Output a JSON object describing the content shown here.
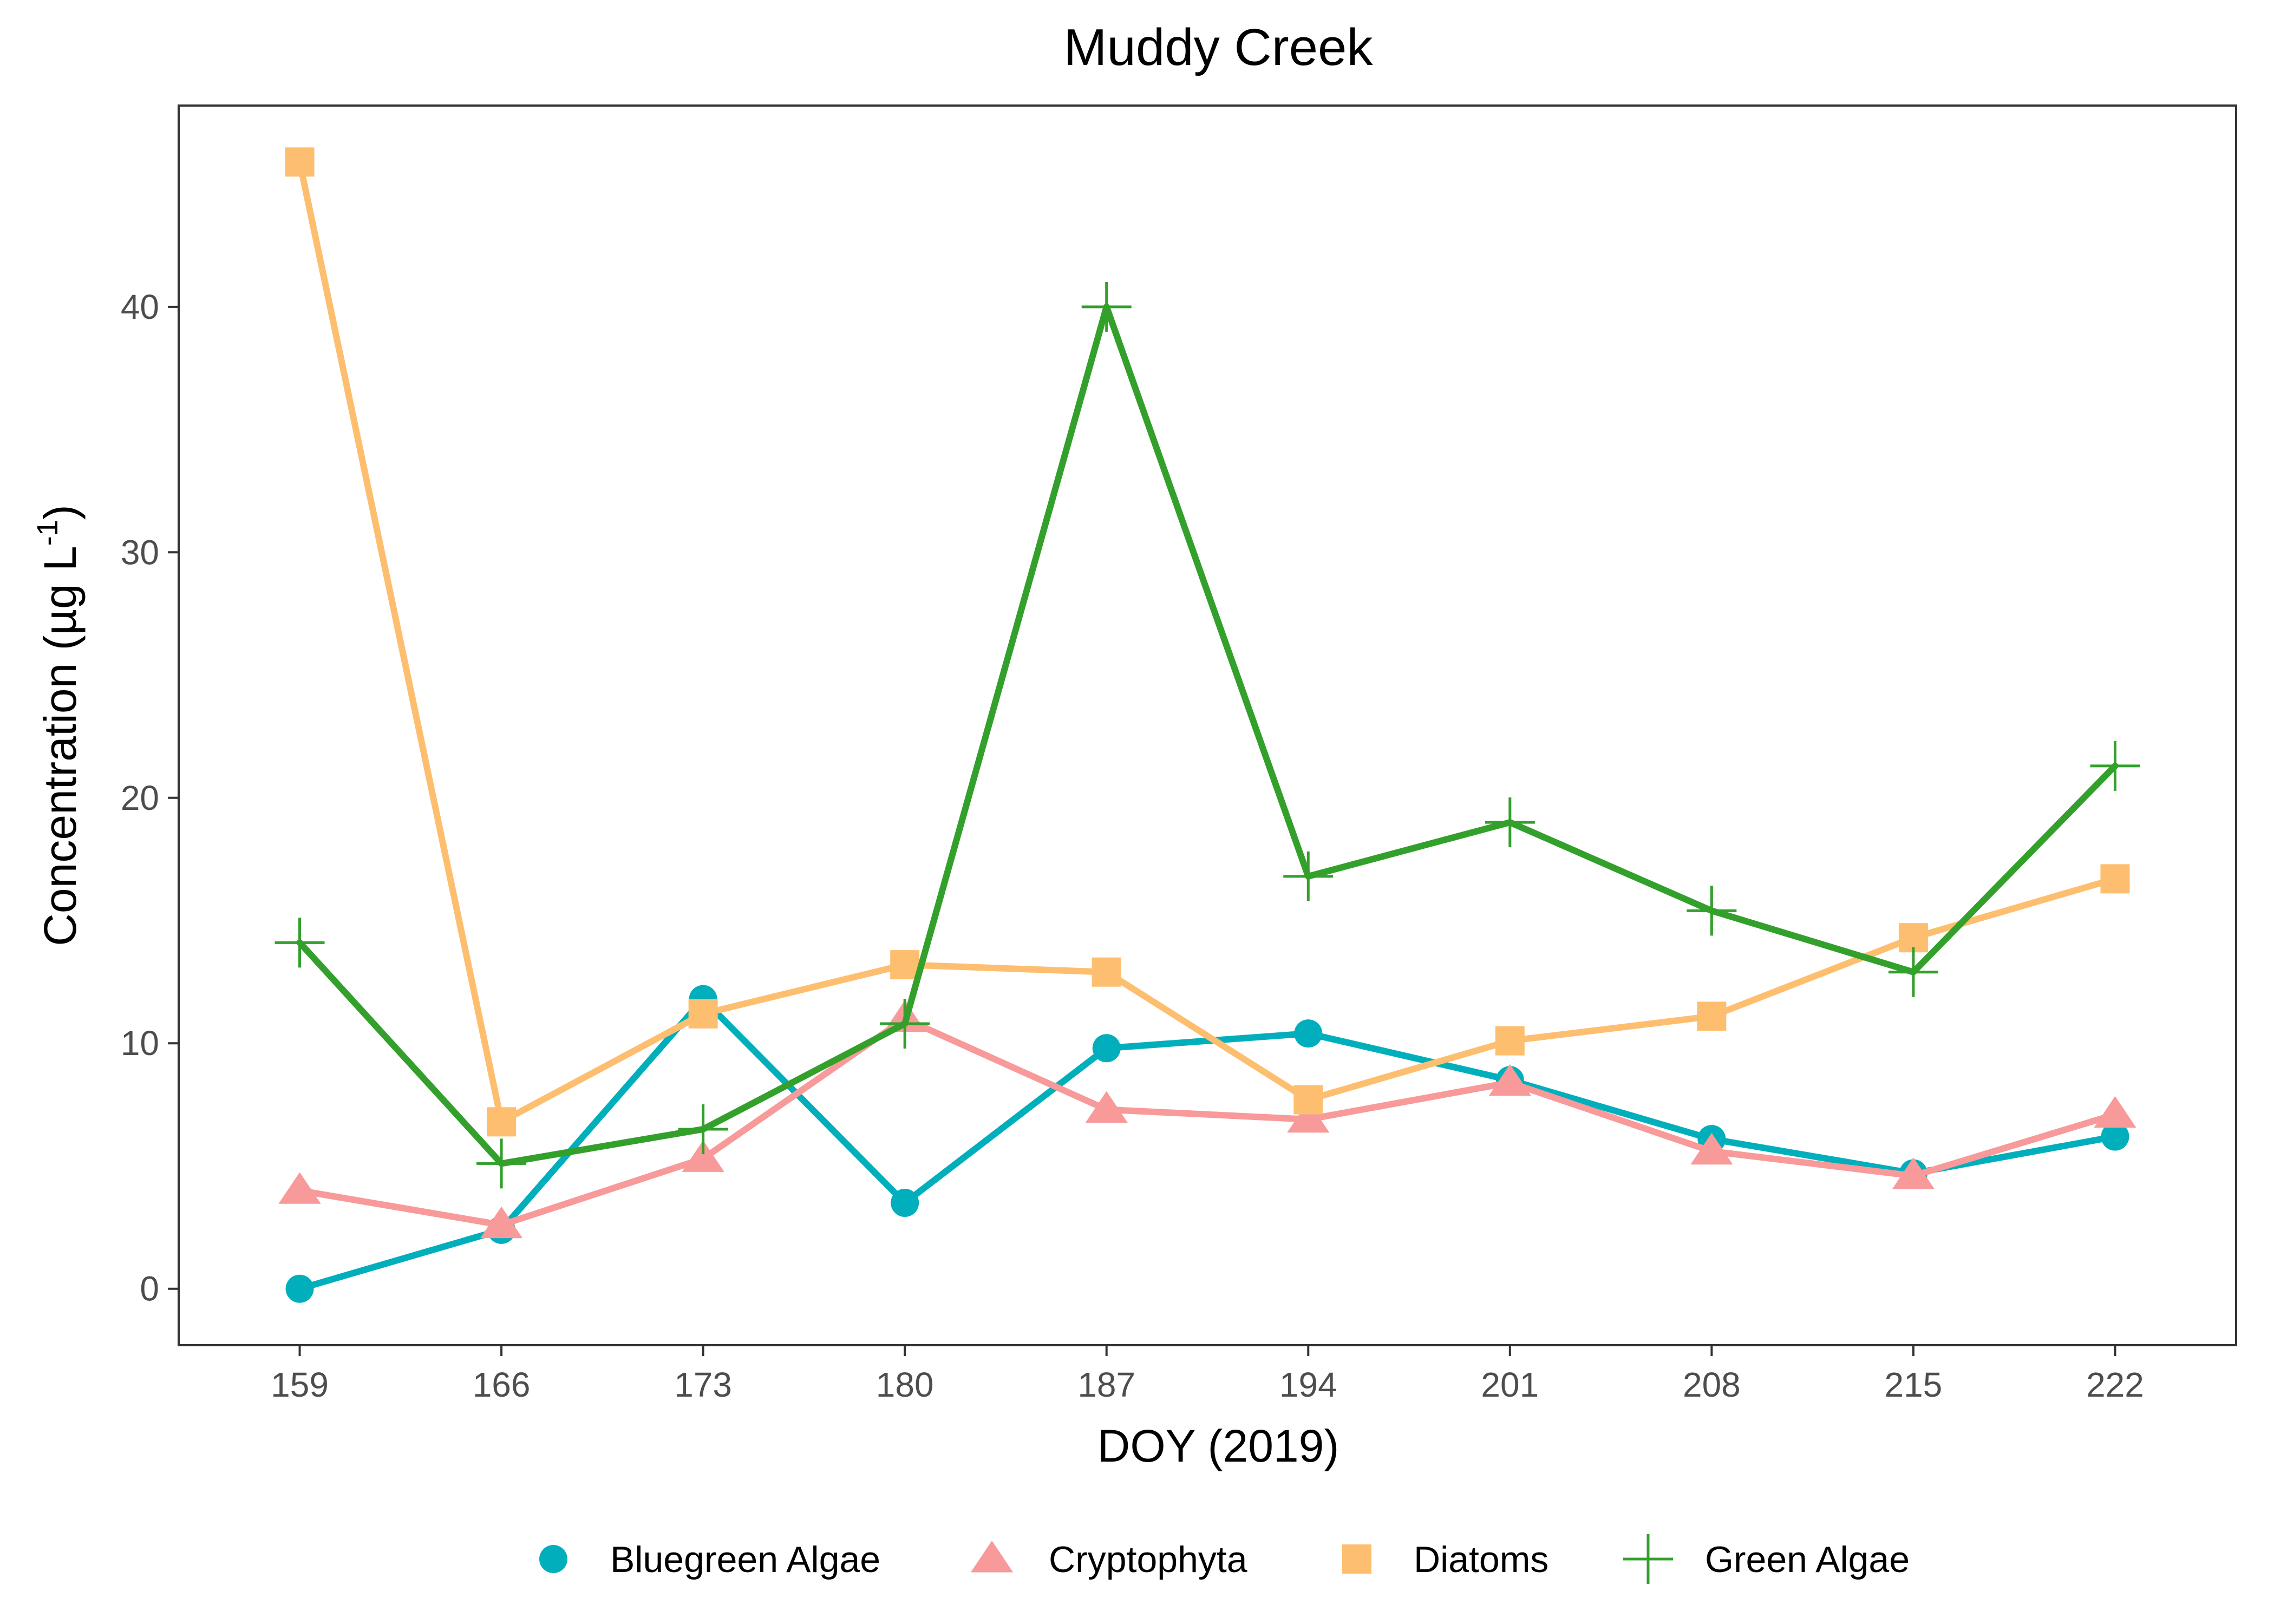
{
  "chart_data": {
    "type": "line",
    "title": "Muddy Creek",
    "xlabel": "DOY (2019)",
    "ylabel": "Concentration (µg L",
    "ylabel_superscript": "-1",
    "ylabel_close": ")",
    "x": [
      159,
      166,
      173,
      180,
      187,
      194,
      201,
      208,
      215,
      222
    ],
    "xticks": [
      "159",
      "166",
      "173",
      "180",
      "187",
      "194",
      "201",
      "208",
      "215",
      "222"
    ],
    "yticks": [
      0,
      10,
      20,
      30,
      40
    ],
    "xlim": [
      154.8,
      226.2
    ],
    "ylim": [
      -2.3,
      48.2
    ],
    "grid": false,
    "legend_position": "bottom",
    "series": [
      {
        "name": "Bluegreen Algae",
        "color": "#00AFBB",
        "marker": "circle",
        "values": [
          0.0,
          2.4,
          11.8,
          3.5,
          9.8,
          10.4,
          8.5,
          6.1,
          4.7,
          6.2
        ]
      },
      {
        "name": "Cryptophyta",
        "color": "#F8999A",
        "marker": "triangle",
        "values": [
          4.0,
          2.6,
          5.3,
          11.0,
          7.3,
          6.9,
          8.4,
          5.6,
          4.6,
          7.1
        ]
      },
      {
        "name": "Diatoms",
        "color": "#FDBF6F",
        "marker": "square",
        "values": [
          45.9,
          6.8,
          11.2,
          13.2,
          12.9,
          7.7,
          10.1,
          11.1,
          14.3,
          16.7
        ]
      },
      {
        "name": "Green Algae",
        "color": "#33A02C",
        "marker": "plus",
        "values": [
          14.1,
          5.1,
          6.5,
          10.8,
          40.0,
          16.8,
          19.0,
          15.4,
          12.9,
          21.3
        ]
      }
    ]
  }
}
